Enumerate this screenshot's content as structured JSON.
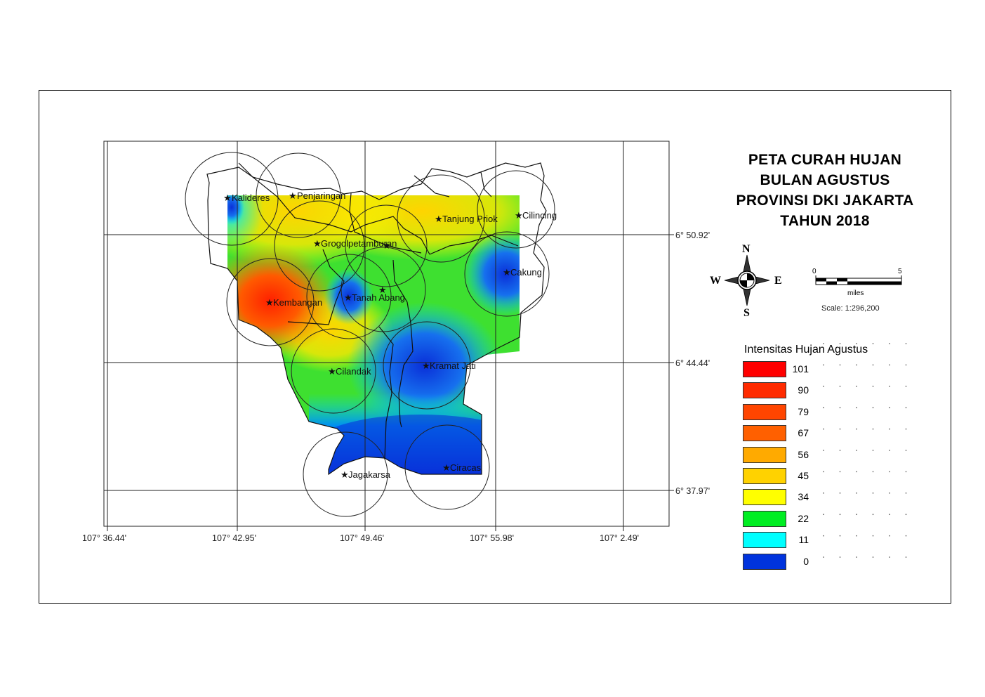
{
  "title": {
    "line1": "PETA CURAH HUJAN",
    "line2": "BULAN AGUSTUS",
    "line3": "PROVINSI DKI JAKARTA",
    "line4": "TAHUN 2018"
  },
  "grid_labels": {
    "longitudes": [
      "107° 36.44'",
      "107° 42.95'",
      "107° 49.46'",
      "107° 55.98'",
      "107° 2.49'"
    ],
    "latitudes": [
      "6° 50.92'",
      "6° 44.44'",
      "6° 37.97'"
    ]
  },
  "stations": [
    {
      "name": "Kalideres"
    },
    {
      "name": "Penjaringan"
    },
    {
      "name": "Tanjung Priok"
    },
    {
      "name": "Cilincing"
    },
    {
      "name": "Grogolpetamburan"
    },
    {
      "name": "Cakung"
    },
    {
      "name": "Kembangan"
    },
    {
      "name": "Tanah Abang"
    },
    {
      "name": "Cilandak"
    },
    {
      "name": "Kramat Jati"
    },
    {
      "name": "Jagakarsa"
    },
    {
      "name": "Ciracas"
    }
  ],
  "compass": {
    "north": "N",
    "south": "S",
    "west": "W",
    "east": "E"
  },
  "scale": {
    "start": "0",
    "end": "5",
    "unit": "miles",
    "ratio": "Scale: 1:296,200"
  },
  "legend": {
    "title": "Intensitas Hujan Agustus",
    "items": [
      {
        "value": "101",
        "color": "#ff0000"
      },
      {
        "value": "90",
        "color": "#ff2b00"
      },
      {
        "value": "79",
        "color": "#ff4500"
      },
      {
        "value": "67",
        "color": "#ff6000"
      },
      {
        "value": "56",
        "color": "#ffaa00"
      },
      {
        "value": "45",
        "color": "#ffd200"
      },
      {
        "value": "34",
        "color": "#ffff00"
      },
      {
        "value": "22",
        "color": "#00ee22"
      },
      {
        "value": "11",
        "color": "#00ffff"
      },
      {
        "value": "0",
        "color": "#0033dd"
      }
    ]
  }
}
